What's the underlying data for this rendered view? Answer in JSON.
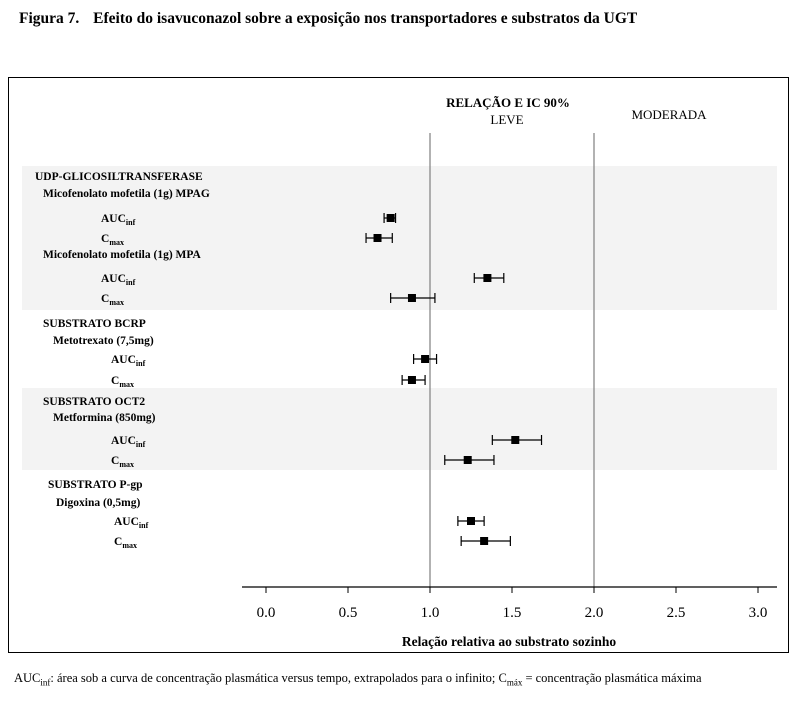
{
  "figure": {
    "label": "Figura 7.",
    "title": "Efeito do isavuconazol sobre a exposição nos transportadores e substratos da UGT"
  },
  "chart_data": {
    "type": "forest",
    "header": "RELAÇÃO E IC 90%",
    "regions": [
      {
        "label": "LEVE",
        "range": [
          1.0,
          2.0
        ]
      },
      {
        "label": "MODERADA",
        "range": [
          2.0,
          3.1
        ]
      }
    ],
    "reference_lines": [
      1.0,
      2.0
    ],
    "xlabel": "Relação relativa ao substrato sozinho",
    "xlim": [
      -0.15,
      3.1
    ],
    "xticks": [
      "0.0",
      "0.5",
      "1.0",
      "1.5",
      "2.0",
      "2.5",
      "3.0"
    ],
    "groups": [
      {
        "name": "UDP-GLICOSILTRANSFERASE",
        "shaded": true,
        "substrates": [
          {
            "name": "Micofenolato mofetila (1g) MPAG",
            "rows": [
              {
                "param": "AUC",
                "sub": "inf",
                "value": 0.76,
                "ci": [
                  0.72,
                  0.79
                ]
              },
              {
                "param": "C",
                "sub": "max",
                "value": 0.68,
                "ci": [
                  0.61,
                  0.77
                ]
              }
            ]
          },
          {
            "name": "Micofenolato mofetila (1g) MPA",
            "rows": [
              {
                "param": "AUC",
                "sub": "inf",
                "value": 1.35,
                "ci": [
                  1.27,
                  1.45
                ]
              },
              {
                "param": "C",
                "sub": "max",
                "value": 0.89,
                "ci": [
                  0.76,
                  1.03
                ]
              }
            ]
          }
        ]
      },
      {
        "name": "SUBSTRATO BCRP",
        "shaded": false,
        "substrates": [
          {
            "name": "Metotrexato (7,5mg)",
            "rows": [
              {
                "param": "AUC",
                "sub": "inf",
                "value": 0.97,
                "ci": [
                  0.9,
                  1.04
                ]
              },
              {
                "param": "C",
                "sub": "max",
                "value": 0.89,
                "ci": [
                  0.83,
                  0.97
                ]
              }
            ]
          }
        ]
      },
      {
        "name": "SUBSTRATO OCT2",
        "shaded": true,
        "substrates": [
          {
            "name": "Metformina (850mg)",
            "rows": [
              {
                "param": "AUC",
                "sub": "inf",
                "value": 1.52,
                "ci": [
                  1.38,
                  1.68
                ]
              },
              {
                "param": "C",
                "sub": "max",
                "value": 1.23,
                "ci": [
                  1.09,
                  1.39
                ]
              }
            ]
          }
        ]
      },
      {
        "name": "SUBSTRATO P-gp",
        "shaded": false,
        "substrates": [
          {
            "name": "Digoxina (0,5mg)",
            "rows": [
              {
                "param": "AUC",
                "sub": "inf",
                "value": 1.25,
                "ci": [
                  1.17,
                  1.33
                ]
              },
              {
                "param": "C",
                "sub": "max",
                "value": 1.33,
                "ci": [
                  1.19,
                  1.49
                ]
              }
            ]
          }
        ]
      }
    ]
  },
  "footnote": {
    "auc_text": "AUC",
    "auc_sub": "inf",
    "part1": ": área sob a curva de concentração plasmática versus tempo, extrapolados para o infinito; C",
    "cmax_sub": "máx",
    "part2": " = concentração plasmática máxima"
  }
}
